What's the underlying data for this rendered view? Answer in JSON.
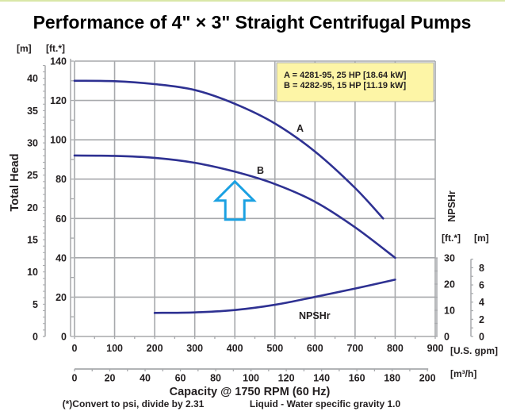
{
  "chart_data": {
    "type": "line",
    "title": "Performance of 4\" × 3\" Straight Centrifugal Pumps",
    "xlabel": "Capacity @ 1750 RPM (60 Hz)",
    "ylabel": "Total Head",
    "y2label": "NPSHr",
    "footnote": "(*)Convert to psi, divide by 2.31",
    "footnote2": "Liquid - Water specific gravity 1.0",
    "x_axis": {
      "unit": "[U.S. gpm]",
      "range": [
        0,
        900
      ],
      "ticks": [
        "0",
        "100",
        "200",
        "300",
        "400",
        "500",
        "600",
        "700",
        "800",
        "900"
      ]
    },
    "x2_axis": {
      "unit": "[m³/h]",
      "range": [
        0,
        204.4
      ],
      "ticks": [
        "0",
        "20",
        "40",
        "60",
        "80",
        "100",
        "120",
        "140",
        "160",
        "180",
        "200"
      ]
    },
    "y_axis_ft": {
      "unit": "[ft.*]",
      "range": [
        0,
        140
      ],
      "ticks": [
        "0",
        "20",
        "40",
        "60",
        "80",
        "100",
        "120",
        "140"
      ]
    },
    "y_axis_m": {
      "unit": "[m]",
      "range": [
        0,
        42.67
      ],
      "ticks": [
        "0",
        "5",
        "10",
        "15",
        "20",
        "25",
        "30",
        "35",
        "40"
      ]
    },
    "npsh_axis_ft": {
      "unit": "[ft.*]",
      "range": [
        0,
        30
      ],
      "ticks": [
        "0",
        "10",
        "20",
        "30"
      ]
    },
    "npsh_axis_m": {
      "unit": "[m]",
      "range": [
        0,
        9.14
      ],
      "ticks": [
        "0",
        "2",
        "4",
        "6",
        "8"
      ]
    },
    "grid": true,
    "legend": {
      "position": "top-right",
      "entries": [
        "A = 4281-95, 25 HP [18.64 kW]",
        "B = 4282-95, 15 HP [11.19 kW]"
      ]
    },
    "series": [
      {
        "name": "A",
        "axis": "head_ft",
        "x": [
          0,
          100,
          200,
          300,
          400,
          500,
          600,
          700,
          770
        ],
        "y": [
          130,
          129.8,
          128.3,
          125.3,
          118.3,
          108.3,
          94,
          75.5,
          60
        ]
      },
      {
        "name": "B",
        "axis": "head_ft",
        "x": [
          0,
          100,
          200,
          300,
          400,
          500,
          600,
          700,
          800
        ],
        "y": [
          92,
          91.8,
          90.8,
          88.3,
          83.8,
          77.5,
          68.5,
          55.5,
          40
        ]
      },
      {
        "name": "NPSHr",
        "axis": "npsh_ft",
        "x": [
          200,
          300,
          400,
          500,
          600,
          700,
          800
        ],
        "y": [
          9,
          9.2,
          10.1,
          12.1,
          15.1,
          18.3,
          21.7
        ]
      }
    ],
    "annotations": [
      {
        "type": "arrow-up",
        "color": "#1ba1e2",
        "x_gpm": 400,
        "y_ft": 80
      }
    ]
  },
  "colors": {
    "curve": "#2e3192",
    "grid": "#a7a9ac",
    "legend_bg": "#fdf5a6",
    "arrow": "#1ba1e2"
  }
}
